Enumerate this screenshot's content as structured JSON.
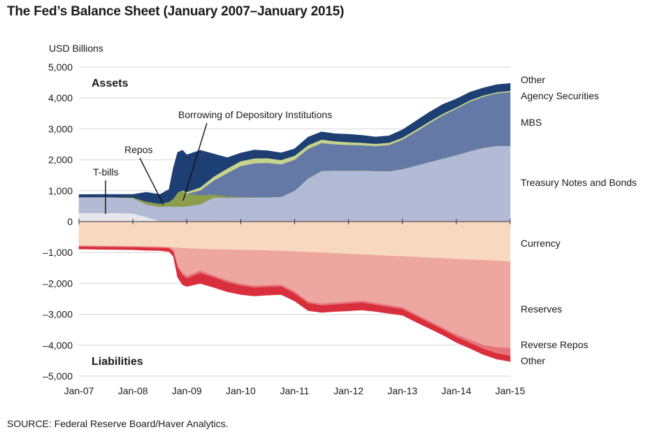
{
  "title": "The Fed’s Balance Sheet (January 2007–January 2015)",
  "unit_label": "USD Billions",
  "source": "SOURCE: Federal Reserve Board/Haver Analytics.",
  "chart_data": {
    "type": "area",
    "title": "The Fed’s Balance Sheet (January 2007–January 2015)",
    "ylabel": "USD Billions",
    "ylim": [
      -5000,
      5000
    ],
    "y_ticks": [
      5000,
      4000,
      3000,
      2000,
      1000,
      0,
      -1000,
      -2000,
      -3000,
      -4000,
      -5000
    ],
    "y_tick_labels": [
      "5,000",
      "4,000",
      "3,000",
      "2,000",
      "1,000",
      "0",
      "–1,000",
      "–2,000",
      "–3,000",
      "–4,000",
      "–5,000"
    ],
    "x_tick_labels": [
      "Jan-07",
      "Jan-08",
      "Jan-09",
      "Jan-10",
      "Jan-11",
      "Jan-12",
      "Jan-13",
      "Jan-14",
      "Jan-15"
    ],
    "x": [
      2007.0,
      2007.5,
      2008.0,
      2008.25,
      2008.5,
      2008.67,
      2008.75,
      2008.83,
      2008.92,
      2009.0,
      2009.25,
      2009.5,
      2009.75,
      2010.0,
      2010.25,
      2010.5,
      2010.75,
      2011.0,
      2011.25,
      2011.5,
      2011.75,
      2012.0,
      2012.25,
      2012.5,
      2012.75,
      2013.0,
      2013.25,
      2013.5,
      2013.75,
      2014.0,
      2014.25,
      2014.5,
      2014.75,
      2015.0
    ],
    "section_labels": {
      "assets": "Assets",
      "liabilities": "Liabilities"
    },
    "assets": [
      {
        "name": "T-bills",
        "color": "#e6e6ec",
        "values": [
          280,
          280,
          270,
          150,
          20,
          20,
          20,
          20,
          20,
          20,
          20,
          20,
          0,
          0,
          0,
          0,
          0,
          0,
          0,
          0,
          0,
          0,
          0,
          0,
          0,
          0,
          0,
          0,
          0,
          0,
          0,
          0,
          0,
          0
        ]
      },
      {
        "name": "Treasury Notes and Bonds",
        "color": "#b3bad6",
        "values": [
          510,
          510,
          490,
          400,
          460,
          470,
          470,
          470,
          470,
          480,
          540,
          760,
          770,
          780,
          780,
          790,
          800,
          1000,
          1400,
          1640,
          1650,
          1650,
          1650,
          1640,
          1630,
          1700,
          1810,
          1930,
          2040,
          2150,
          2280,
          2390,
          2450,
          2450
        ]
      },
      {
        "name": "Borrowing of Depository Institutions",
        "color": "#8c9d4b",
        "values": [
          5,
          5,
          20,
          100,
          100,
          150,
          250,
          450,
          500,
          400,
          300,
          100,
          50,
          20,
          10,
          5,
          5,
          5,
          5,
          5,
          5,
          5,
          5,
          5,
          5,
          5,
          5,
          5,
          5,
          5,
          5,
          5,
          5,
          5
        ]
      },
      {
        "name": "MBS",
        "color": "#6579a6",
        "values": [
          0,
          0,
          0,
          0,
          0,
          0,
          0,
          0,
          0,
          0,
          150,
          450,
          750,
          1000,
          1100,
          1110,
          1050,
          1000,
          950,
          900,
          850,
          830,
          820,
          800,
          850,
          950,
          1100,
          1250,
          1400,
          1500,
          1600,
          1650,
          1700,
          1740
        ]
      },
      {
        "name": "Agency Securities",
        "color": "#c6d38c",
        "values": [
          0,
          0,
          0,
          0,
          0,
          0,
          0,
          0,
          20,
          60,
          100,
          130,
          150,
          160,
          160,
          150,
          140,
          130,
          120,
          110,
          100,
          90,
          80,
          75,
          70,
          65,
          60,
          55,
          50,
          45,
          42,
          40,
          38,
          38
        ]
      },
      {
        "name": "Other",
        "color": "#1d3f73",
        "values": [
          80,
          85,
          100,
          300,
          300,
          400,
          1000,
          1300,
          1300,
          1200,
          1200,
          730,
          350,
          260,
          270,
          240,
          230,
          220,
          260,
          250,
          240,
          250,
          240,
          220,
          220,
          250,
          280,
          300,
          300,
          270,
          260,
          240,
          240,
          240
        ]
      }
    ],
    "liabilities": [
      {
        "name": "Currency",
        "color": "#f8d8bf",
        "values": [
          780,
          790,
          800,
          810,
          820,
          830,
          840,
          850,
          860,
          870,
          890,
          900,
          910,
          920,
          930,
          940,
          950,
          970,
          990,
          1010,
          1030,
          1050,
          1070,
          1090,
          1110,
          1130,
          1150,
          1170,
          1190,
          1210,
          1230,
          1250,
          1270,
          1300
        ]
      },
      {
        "name": "Reserves",
        "color": "#eda6a0",
        "values": [
          10,
          10,
          10,
          10,
          10,
          10,
          100,
          600,
          800,
          900,
          700,
          850,
          1000,
          1100,
          1150,
          1120,
          1100,
          1300,
          1600,
          1650,
          1600,
          1550,
          1500,
          1550,
          1600,
          1650,
          1850,
          2050,
          2250,
          2450,
          2600,
          2750,
          2800,
          2800
        ]
      },
      {
        "name": "Reverse Repos",
        "color": "#e7737a",
        "values": [
          30,
          30,
          30,
          30,
          30,
          30,
          30,
          50,
          80,
          80,
          80,
          60,
          60,
          60,
          60,
          60,
          60,
          60,
          60,
          60,
          60,
          60,
          60,
          60,
          60,
          60,
          60,
          60,
          60,
          80,
          100,
          120,
          200,
          250
        ]
      },
      {
        "name": "Other",
        "color": "#d92e3c",
        "values": [
          70,
          70,
          70,
          80,
          80,
          100,
          150,
          300,
          300,
          250,
          330,
          320,
          300,
          280,
          270,
          260,
          250,
          240,
          230,
          220,
          220,
          230,
          230,
          210,
          200,
          190,
          190,
          180,
          170,
          170,
          170,
          180,
          180,
          180
        ]
      }
    ],
    "series_labels": {
      "other_assets": "Other",
      "agency": "Agency Securities",
      "mbs": "MBS",
      "treasury": "Treasury Notes and Bonds",
      "currency": "Currency",
      "reserves": "Reserves",
      "reverse_repos": "Reverse Repos",
      "other_liabilities": "Other"
    },
    "annotations": [
      {
        "text": "Borrowing of Depository Institutions",
        "points_to_x": 2008.9,
        "points_to_y": 600
      },
      {
        "text": "Repos",
        "points_to_x": 2008.5,
        "points_to_y": 480
      },
      {
        "text": "T-bills",
        "points_to_x": 2007.45,
        "points_to_y": 150
      }
    ]
  }
}
